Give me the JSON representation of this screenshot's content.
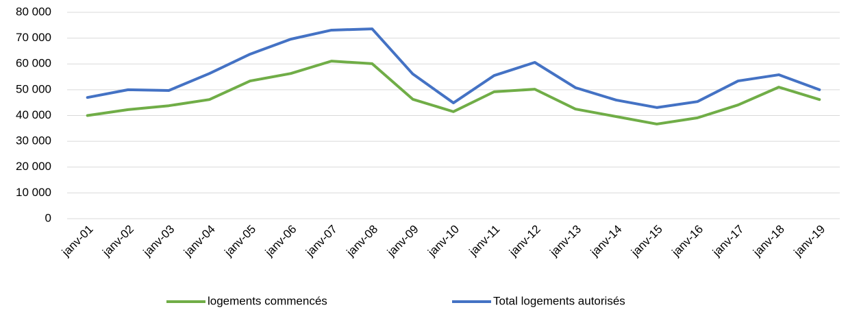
{
  "chart_data": {
    "type": "line",
    "categories": [
      "janv-01",
      "janv-02",
      "janv-03",
      "janv-04",
      "janv-05",
      "janv-06",
      "janv-07",
      "janv-08",
      "janv-09",
      "janv-10",
      "janv-11",
      "janv-12",
      "janv-13",
      "janv-14",
      "janv-15",
      "janv-16",
      "janv-17",
      "janv-18",
      "janv-19"
    ],
    "series": [
      {
        "name": "logements commencés",
        "color": "#70ad47",
        "values": [
          40000,
          42300,
          43800,
          46200,
          53400,
          56300,
          61100,
          60100,
          46300,
          41500,
          49200,
          50200,
          42500,
          39600,
          36700,
          39100,
          44100,
          51000,
          46200
        ]
      },
      {
        "name": "Total logements autorisés",
        "color": "#4472c4",
        "values": [
          47000,
          50000,
          49700,
          56300,
          63800,
          69600,
          73100,
          73600,
          56100,
          44900,
          55500,
          60600,
          50800,
          46000,
          43100,
          45400,
          53400,
          55800,
          50000
        ]
      }
    ],
    "ylim": [
      0,
      80000
    ],
    "yticks": [
      0,
      {
        "value": 10000,
        "label": "10 000"
      },
      {
        "value": 20000,
        "label": "20 000"
      },
      {
        "value": 30000,
        "label": "30 000"
      },
      {
        "value": 40000,
        "label": "40 000"
      },
      {
        "value": 50000,
        "label": "50 000"
      },
      {
        "value": 60000,
        "label": "60 000"
      },
      {
        "value": 70000,
        "label": "70 000"
      },
      {
        "value": 80000,
        "label": "80 000"
      }
    ],
    "grid": true,
    "legend": "bottom"
  }
}
